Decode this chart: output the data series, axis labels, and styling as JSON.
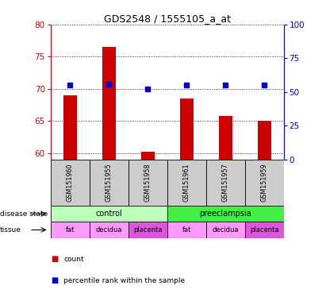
{
  "title": "GDS2548 / 1555105_a_at",
  "samples": [
    "GSM151960",
    "GSM151955",
    "GSM151958",
    "GSM151961",
    "GSM151957",
    "GSM151959"
  ],
  "count_values": [
    69.0,
    76.5,
    60.2,
    68.5,
    65.8,
    65.0
  ],
  "percentile_values": [
    55,
    56,
    52,
    55,
    55,
    55
  ],
  "ylim_left": [
    59,
    80
  ],
  "ylim_right": [
    0,
    100
  ],
  "yticks_left": [
    60,
    65,
    70,
    75,
    80
  ],
  "yticks_right": [
    0,
    25,
    50,
    75,
    100
  ],
  "bar_color": "#cc0000",
  "dot_color": "#0000cc",
  "bar_width": 0.35,
  "disease_state": [
    {
      "label": "control",
      "span": [
        0,
        3
      ],
      "color": "#bbffbb"
    },
    {
      "label": "preeclampsia",
      "span": [
        3,
        6
      ],
      "color": "#44ee44"
    }
  ],
  "tissue": [
    {
      "label": "fat",
      "span": [
        0,
        1
      ],
      "color": "#ff99ff"
    },
    {
      "label": "decidua",
      "span": [
        1,
        2
      ],
      "color": "#ff99ff"
    },
    {
      "label": "placenta",
      "span": [
        2,
        3
      ],
      "color": "#dd55dd"
    },
    {
      "label": "fat",
      "span": [
        3,
        4
      ],
      "color": "#ff99ff"
    },
    {
      "label": "decidua",
      "span": [
        4,
        5
      ],
      "color": "#ff99ff"
    },
    {
      "label": "placenta",
      "span": [
        5,
        6
      ],
      "color": "#dd55dd"
    }
  ],
  "gsm_bg_color": "#cccccc",
  "left_axis_color": "#cc0000",
  "right_axis_color": "#0000cc",
  "legend_count_color": "#cc0000",
  "legend_dot_color": "#0000cc"
}
